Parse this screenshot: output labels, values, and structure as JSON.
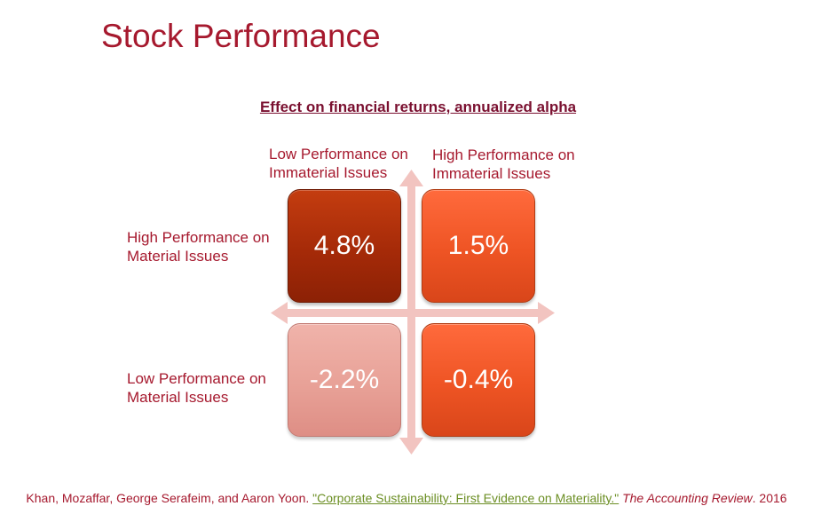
{
  "title": "Stock Performance",
  "subtitle": "Effect on financial returns, annualized alpha",
  "axis_labels": {
    "top_left_line1": "Low Performance on",
    "top_left_line2": "Immaterial Issues",
    "top_right_line1": "High Performance on",
    "top_right_line2": "Immaterial Issues",
    "left_top_line1": "High Performance on",
    "left_top_line2": "Material Issues",
    "left_bottom_line1": "Low Performance on",
    "left_bottom_line2": "Material Issues"
  },
  "quadrants": {
    "high_material_low_immaterial": "4.8%",
    "high_material_high_immaterial": "1.5%",
    "low_material_low_immaterial": "-2.2%",
    "low_material_high_immaterial": "-0.4%"
  },
  "citation": {
    "authors": "Khan, Mozaffar, George Serafeim, and Aaron Yoon. ",
    "article": "\"Corporate Sustainability: First Evidence on Materiality.\"",
    "journal": "The Accounting Review",
    "year": ". 2016"
  },
  "colors": {
    "title": "#a6192e",
    "dark_quadrant": "#a52a08",
    "orange_quadrant": "#ee5424",
    "light_quadrant": "#e8a197",
    "axis_arrow": "#f2c4c0",
    "link": "#6b8e23"
  }
}
